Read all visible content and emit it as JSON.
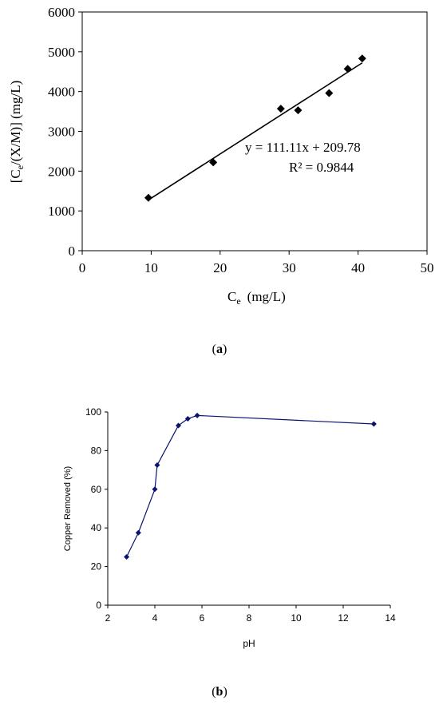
{
  "chart_data": [
    {
      "type": "scatter",
      "panel_label": "a",
      "xlabel": "C",
      "xlabel_sub": "e",
      "xlabel_unit": "(mg/L)",
      "ylabel_pre": "[C",
      "ylabel_sub": "e",
      "ylabel_post": "/(X/M)] (mg/L)",
      "xlim": [
        0,
        50
      ],
      "ylim": [
        0,
        6000
      ],
      "xticks": [
        0,
        10,
        20,
        30,
        40,
        50
      ],
      "yticks": [
        0,
        1000,
        2000,
        3000,
        4000,
        5000,
        6000
      ],
      "grid": false,
      "points": [
        {
          "x": 9.6,
          "y": 1330
        },
        {
          "x": 19.0,
          "y": 2220
        },
        {
          "x": 28.8,
          "y": 3570
        },
        {
          "x": 31.3,
          "y": 3530
        },
        {
          "x": 35.8,
          "y": 3960
        },
        {
          "x": 38.5,
          "y": 4570
        },
        {
          "x": 40.6,
          "y": 4830
        }
      ],
      "trendline": {
        "slope": 111.11,
        "intercept": 209.78,
        "x_range": [
          9.6,
          40.6
        ]
      },
      "equation": "y = 111.11x + 209.78",
      "r_squared": "R² = 0.9844",
      "marker_color": "#000000"
    },
    {
      "type": "line",
      "panel_label": "b",
      "xlabel": "pH",
      "ylabel": "Copper Removed (%)",
      "xlim": [
        2,
        14
      ],
      "ylim": [
        0,
        100
      ],
      "xticks": [
        2,
        4,
        6,
        8,
        10,
        12,
        14
      ],
      "yticks": [
        0,
        20,
        40,
        60,
        80,
        100
      ],
      "grid": false,
      "points": [
        {
          "x": 2.8,
          "y": 25
        },
        {
          "x": 3.3,
          "y": 37.5
        },
        {
          "x": 4.0,
          "y": 60
        },
        {
          "x": 4.1,
          "y": 72.5
        },
        {
          "x": 5.0,
          "y": 93
        },
        {
          "x": 5.4,
          "y": 96.5
        },
        {
          "x": 5.8,
          "y": 98.2
        },
        {
          "x": 13.3,
          "y": 93.8
        }
      ],
      "line_color": "#0a1470"
    }
  ]
}
